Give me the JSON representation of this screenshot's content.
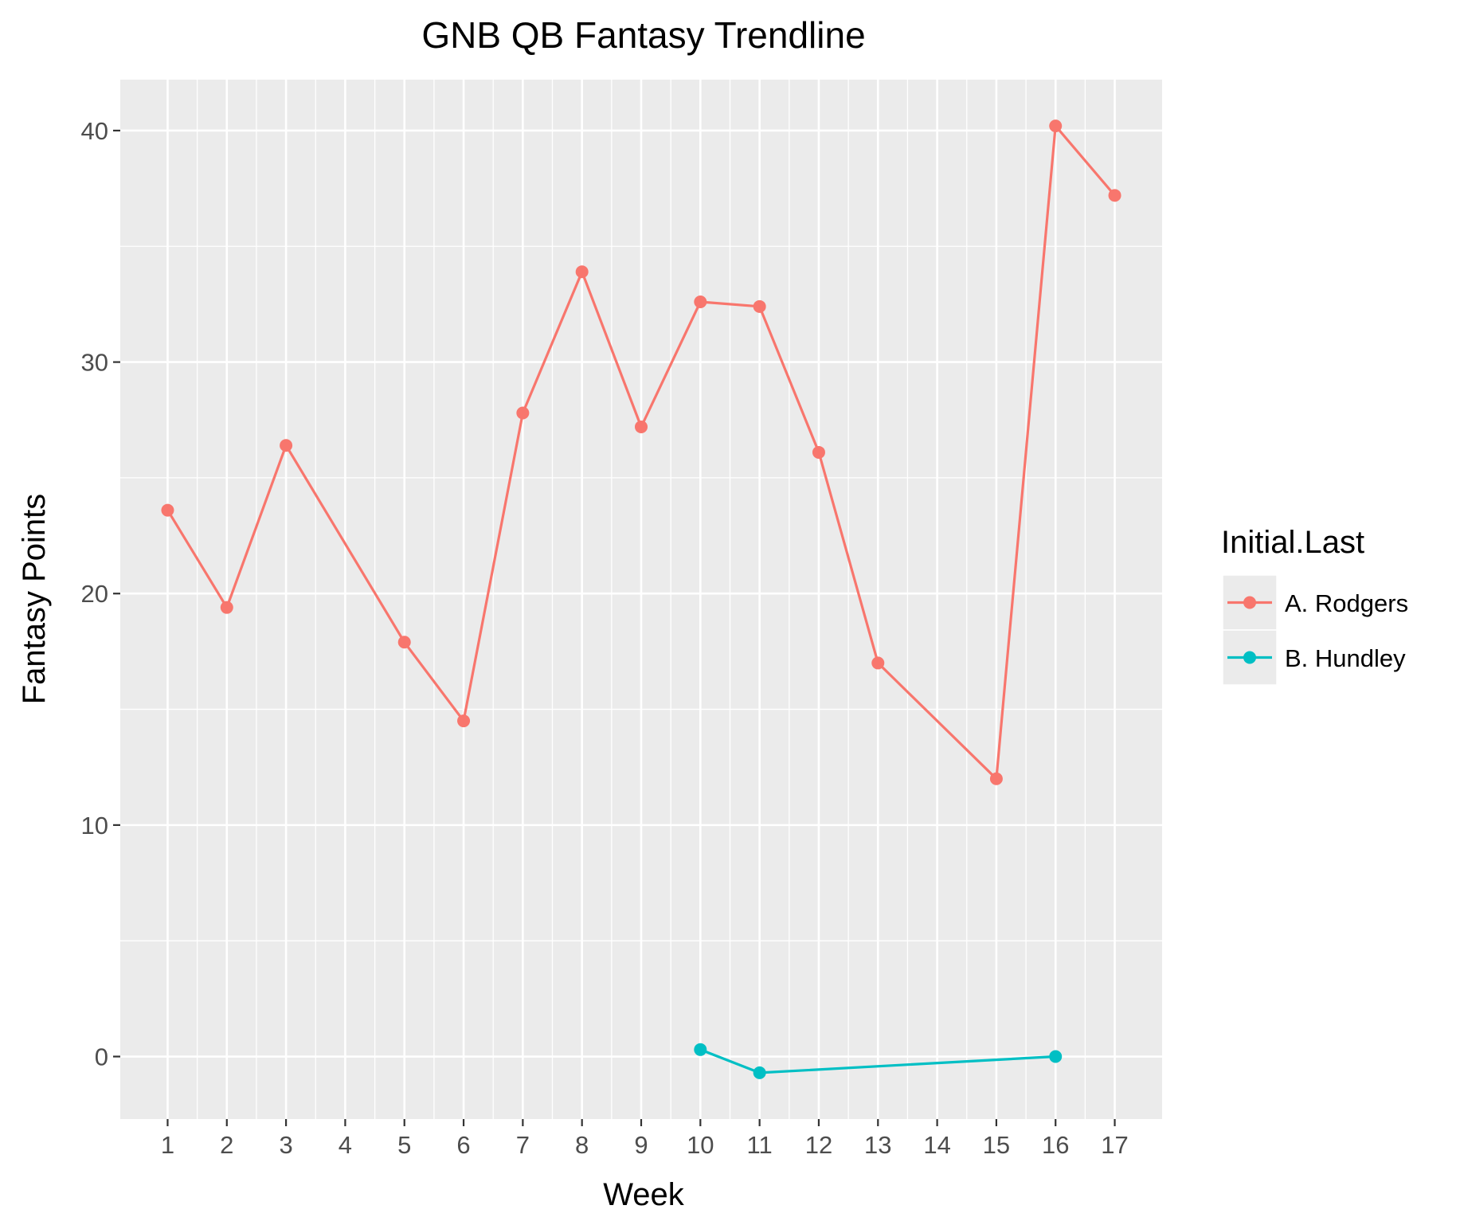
{
  "chart_data": {
    "type": "line",
    "title": "GNB QB Fantasy Trendline",
    "xlabel": "Week",
    "ylabel": "Fantasy Points",
    "x_ticks": [
      "1",
      "2",
      "3",
      "4",
      "5",
      "6",
      "7",
      "8",
      "9",
      "10",
      "11",
      "12",
      "13",
      "14",
      "15",
      "16",
      "17"
    ],
    "y_ticks": [
      0,
      10,
      20,
      30,
      40
    ],
    "xlim": [
      0.2,
      17.8
    ],
    "ylim": [
      -2.7,
      42.2
    ],
    "grid": true,
    "legend_title": "Initial.Last",
    "legend_position": "right",
    "series": [
      {
        "name": "A. Rodgers",
        "color": "#F8766D",
        "x": [
          1,
          2,
          3,
          5,
          6,
          7,
          8,
          9,
          10,
          11,
          12,
          13,
          15,
          16,
          17
        ],
        "y": [
          23.6,
          19.4,
          26.4,
          17.9,
          14.5,
          27.8,
          33.9,
          27.2,
          32.6,
          32.4,
          26.1,
          17.0,
          12.0,
          40.2,
          37.2
        ]
      },
      {
        "name": "B. Hundley",
        "color": "#00BFC4",
        "x": [
          10,
          11,
          16
        ],
        "y": [
          0.3,
          -0.7,
          0.0
        ]
      }
    ]
  }
}
